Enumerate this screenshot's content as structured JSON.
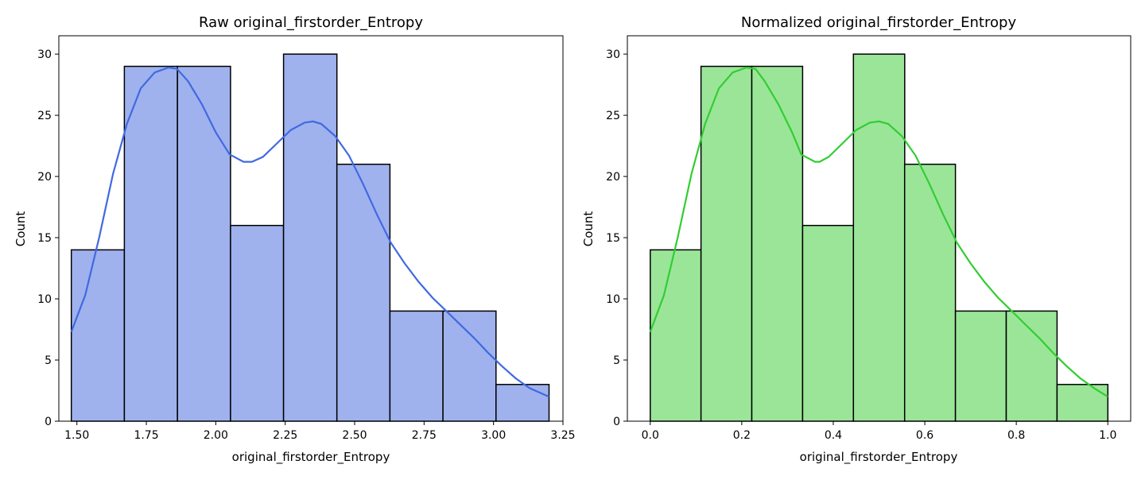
{
  "chart_data": [
    {
      "type": "bar",
      "subtype": "histogram_with_kde",
      "title": "Raw original_firstorder_Entropy",
      "xlabel": "original_firstorder_Entropy",
      "ylabel": "Count",
      "xlim": [
        1.435,
        3.25
      ],
      "ylim": [
        0,
        31.5
      ],
      "xticks": [
        1.5,
        1.75,
        2.0,
        2.25,
        2.5,
        2.75,
        3.0,
        3.25
      ],
      "xtick_labels": [
        "1.50",
        "1.75",
        "2.00",
        "2.25",
        "2.50",
        "2.75",
        "3.00",
        "3.25"
      ],
      "yticks": [
        0,
        5,
        10,
        15,
        20,
        25,
        30
      ],
      "ytick_labels": [
        "0",
        "5",
        "10",
        "15",
        "20",
        "25",
        "30"
      ],
      "bin_edges": [
        1.48,
        1.671,
        1.862,
        2.053,
        2.244,
        2.436,
        2.627,
        2.818,
        3.009,
        3.2
      ],
      "values": [
        14,
        29,
        29,
        16,
        30,
        21,
        9,
        9,
        3
      ],
      "kde": {
        "x": [
          1.48,
          1.53,
          1.58,
          1.63,
          1.68,
          1.73,
          1.78,
          1.83,
          1.86,
          1.9,
          1.95,
          2.0,
          2.05,
          2.1,
          2.13,
          2.17,
          2.22,
          2.27,
          2.32,
          2.35,
          2.38,
          2.43,
          2.48,
          2.53,
          2.58,
          2.63,
          2.68,
          2.73,
          2.78,
          2.83,
          2.88,
          2.93,
          2.98,
          3.03,
          3.08,
          3.13,
          3.2
        ],
        "y": [
          7.3,
          10.3,
          15.0,
          20.2,
          24.3,
          27.2,
          28.5,
          28.9,
          28.8,
          27.8,
          25.9,
          23.6,
          21.8,
          21.2,
          21.2,
          21.6,
          22.7,
          23.8,
          24.4,
          24.5,
          24.3,
          23.3,
          21.7,
          19.4,
          16.9,
          14.6,
          12.9,
          11.4,
          10.1,
          9.0,
          7.9,
          6.8,
          5.6,
          4.5,
          3.5,
          2.7,
          2.0
        ]
      },
      "colors": {
        "bar_fill": "#9fb2ee",
        "bar_edge": "#000000",
        "kde_line": "#4169e1"
      }
    },
    {
      "type": "bar",
      "subtype": "histogram_with_kde",
      "title": "Normalized original_firstorder_Entropy",
      "xlabel": "original_firstorder_Entropy",
      "ylabel": "Count",
      "xlim": [
        -0.05,
        1.05
      ],
      "ylim": [
        0,
        31.5
      ],
      "xticks": [
        0.0,
        0.2,
        0.4,
        0.6,
        0.8,
        1.0
      ],
      "xtick_labels": [
        "0.0",
        "0.2",
        "0.4",
        "0.6",
        "0.8",
        "1.0"
      ],
      "yticks": [
        0,
        5,
        10,
        15,
        20,
        25,
        30
      ],
      "ytick_labels": [
        "0",
        "5",
        "10",
        "15",
        "20",
        "25",
        "30"
      ],
      "bin_edges": [
        0.0,
        0.111,
        0.222,
        0.333,
        0.444,
        0.556,
        0.667,
        0.778,
        0.889,
        1.0
      ],
      "values": [
        14,
        29,
        29,
        16,
        30,
        21,
        9,
        9,
        3
      ],
      "kde": {
        "x": [
          0.0,
          0.03,
          0.06,
          0.09,
          0.12,
          0.15,
          0.18,
          0.21,
          0.23,
          0.25,
          0.28,
          0.31,
          0.33,
          0.36,
          0.37,
          0.39,
          0.42,
          0.45,
          0.48,
          0.5,
          0.52,
          0.55,
          0.58,
          0.61,
          0.64,
          0.67,
          0.7,
          0.73,
          0.76,
          0.79,
          0.82,
          0.85,
          0.88,
          0.91,
          0.94,
          0.97,
          1.0
        ],
        "y": [
          7.3,
          10.3,
          15.0,
          20.2,
          24.3,
          27.2,
          28.5,
          28.9,
          28.8,
          27.8,
          25.9,
          23.6,
          21.8,
          21.2,
          21.2,
          21.6,
          22.7,
          23.8,
          24.4,
          24.5,
          24.3,
          23.3,
          21.7,
          19.4,
          16.9,
          14.6,
          12.9,
          11.4,
          10.1,
          9.0,
          7.9,
          6.8,
          5.6,
          4.5,
          3.5,
          2.7,
          2.0
        ]
      },
      "colors": {
        "bar_fill": "#9be599",
        "bar_edge": "#000000",
        "kde_line": "#32cd32"
      }
    }
  ]
}
